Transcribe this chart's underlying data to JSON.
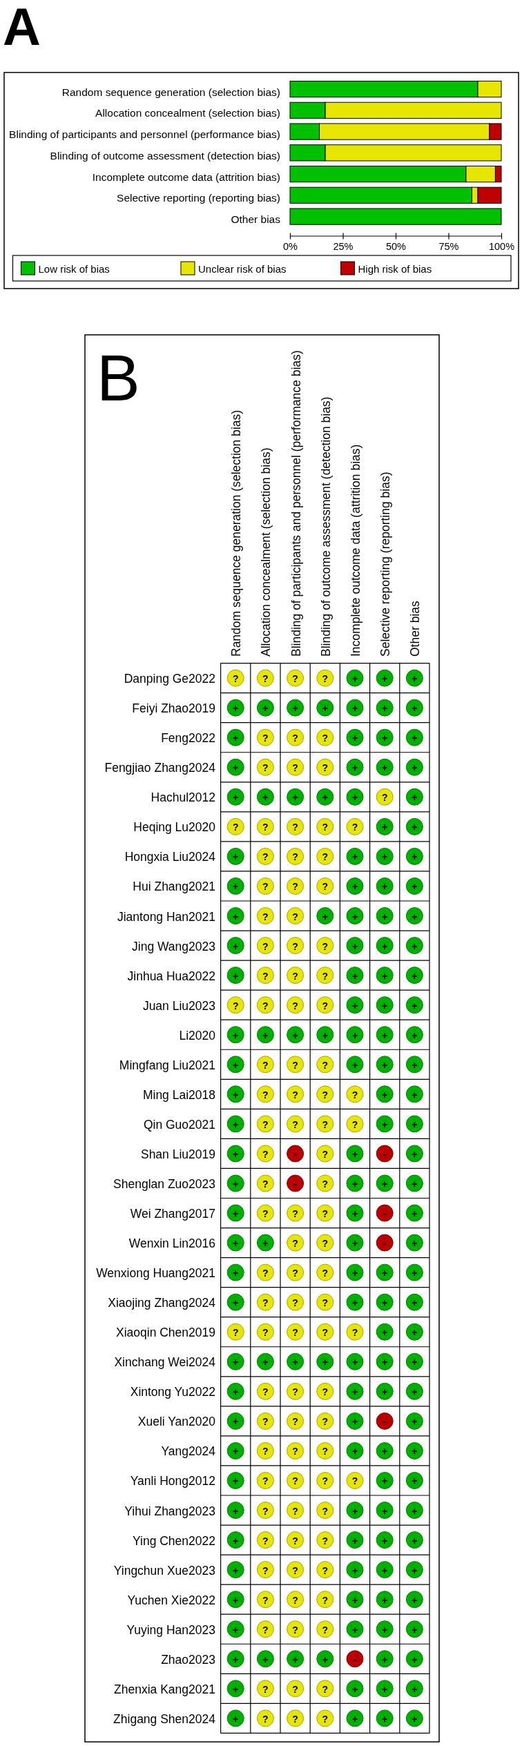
{
  "chart_data": [
    {
      "type": "bar",
      "orientation": "horizontal",
      "stacked": true,
      "title": "A",
      "categories": [
        "Random sequence generation (selection bias)",
        "Allocation concealment (selection bias)",
        "Blinding of participants and personnel (performance bias)",
        "Blinding of outcome assessment (detection bias)",
        "Incomplete outcome data (attrition bias)",
        "Selective reporting (reporting bias)",
        "Other bias"
      ],
      "series": [
        {
          "name": "Low risk of bias",
          "color": "#00c000",
          "values": [
            88.9,
            16.7,
            13.9,
            16.7,
            83.3,
            86.1,
            100
          ]
        },
        {
          "name": "Unclear risk of bias",
          "color": "#e6e600",
          "values": [
            11.1,
            83.3,
            80.5,
            83.3,
            13.9,
            2.8,
            0
          ]
        },
        {
          "name": "High risk of bias",
          "color": "#c00000",
          "values": [
            0,
            0,
            5.6,
            0,
            2.8,
            11.1,
            0
          ]
        }
      ],
      "xlim": [
        0,
        100
      ],
      "xticks": [
        {
          "value": 0,
          "label": "0%"
        },
        {
          "value": 25,
          "label": "25%"
        },
        {
          "value": 50,
          "label": "50%"
        },
        {
          "value": 75,
          "label": "75%"
        },
        {
          "value": 100,
          "label": "100%"
        }
      ],
      "legend": "bottom"
    },
    {
      "type": "heatmap",
      "title": "B",
      "categories": [
        "Random sequence generation (selection bias)",
        "Allocation concealment (selection bias)",
        "Blinding of participants and personnel (performance bias)",
        "Blinding of outcome assessment (detection bias)",
        "Incomplete outcome data (attrition bias)",
        "Selective reporting (reporting bias)",
        "Other bias"
      ],
      "y_categories": [
        "Danping Ge2022",
        "Feiyi Zhao2019",
        "Feng2022",
        "Fengjiao Zhang2024",
        "Hachul2012",
        "Heqing Lu2020",
        "Hongxia Liu2024",
        "Hui Zhang2021",
        "Jiantong Han2021",
        "Jing Wang2023",
        "Jinhua Hua2022",
        "Juan Liu2023",
        "Li2020",
        "Mingfang Liu2021",
        "Ming Lai2018",
        "Qin Guo2021",
        "Shan Liu2019",
        "Shenglan Zuo2023",
        "Wei Zhang2017",
        "Wenxin Lin2016",
        "Wenxiong Huang2021",
        "Xiaojing Zhang2024",
        "Xiaoqin Chen2019",
        "Xinchang Wei2024",
        "Xintong Yu2022",
        "Xueli Yan2020",
        "Yang2024",
        "Yanli Hong2012",
        "Yihui Zhang2023",
        "Ying Chen2022",
        "Yingchun Xue2023",
        "Yuchen Xie2022",
        "Yuying Han2023",
        "Zhao2023",
        "Zhenxia Kang2021",
        "Zhigang Shen2024"
      ],
      "cells": [
        [
          "?",
          "?",
          "?",
          "?",
          "+",
          "+",
          "+"
        ],
        [
          "+",
          "+",
          "+",
          "+",
          "+",
          "+",
          "+"
        ],
        [
          "+",
          "?",
          "?",
          "?",
          "+",
          "+",
          "+"
        ],
        [
          "+",
          "?",
          "?",
          "?",
          "+",
          "+",
          "+"
        ],
        [
          "+",
          "+",
          "+",
          "+",
          "+",
          "?",
          "+"
        ],
        [
          "?",
          "?",
          "?",
          "?",
          "?",
          "+",
          "+"
        ],
        [
          "+",
          "?",
          "?",
          "?",
          "+",
          "+",
          "+"
        ],
        [
          "+",
          "?",
          "?",
          "?",
          "+",
          "+",
          "+"
        ],
        [
          "+",
          "?",
          "?",
          "+",
          "+",
          "+",
          "+"
        ],
        [
          "+",
          "?",
          "?",
          "?",
          "+",
          "+",
          "+"
        ],
        [
          "+",
          "?",
          "?",
          "?",
          "+",
          "+",
          "+"
        ],
        [
          "?",
          "?",
          "?",
          "?",
          "+",
          "+",
          "+"
        ],
        [
          "+",
          "+",
          "+",
          "+",
          "+",
          "+",
          "+"
        ],
        [
          "+",
          "?",
          "?",
          "?",
          "+",
          "+",
          "+"
        ],
        [
          "+",
          "?",
          "?",
          "?",
          "?",
          "+",
          "+"
        ],
        [
          "+",
          "?",
          "?",
          "?",
          "?",
          "+",
          "+"
        ],
        [
          "+",
          "?",
          "-",
          "?",
          "+",
          "-",
          "+"
        ],
        [
          "+",
          "?",
          "-",
          "?",
          "+",
          "+",
          "+"
        ],
        [
          "+",
          "?",
          "?",
          "?",
          "+",
          "-",
          "+"
        ],
        [
          "+",
          "+",
          "?",
          "?",
          "+",
          "-",
          "+"
        ],
        [
          "+",
          "?",
          "?",
          "?",
          "+",
          "+",
          "+"
        ],
        [
          "+",
          "?",
          "?",
          "?",
          "+",
          "+",
          "+"
        ],
        [
          "?",
          "?",
          "?",
          "?",
          "?",
          "+",
          "+"
        ],
        [
          "+",
          "+",
          "+",
          "+",
          "+",
          "+",
          "+"
        ],
        [
          "+",
          "?",
          "?",
          "?",
          "+",
          "+",
          "+"
        ],
        [
          "+",
          "?",
          "?",
          "?",
          "+",
          "-",
          "+"
        ],
        [
          "+",
          "?",
          "?",
          "?",
          "+",
          "+",
          "+"
        ],
        [
          "+",
          "?",
          "?",
          "?",
          "?",
          "+",
          "+"
        ],
        [
          "+",
          "?",
          "?",
          "?",
          "+",
          "+",
          "+"
        ],
        [
          "+",
          "?",
          "?",
          "?",
          "+",
          "+",
          "+"
        ],
        [
          "+",
          "?",
          "?",
          "?",
          "+",
          "+",
          "+"
        ],
        [
          "+",
          "?",
          "?",
          "?",
          "+",
          "+",
          "+"
        ],
        [
          "+",
          "?",
          "?",
          "?",
          "+",
          "+",
          "+"
        ],
        [
          "+",
          "+",
          "+",
          "+",
          "-",
          "+",
          "+"
        ],
        [
          "+",
          "?",
          "?",
          "?",
          "+",
          "+",
          "+"
        ],
        [
          "+",
          "?",
          "?",
          "?",
          "+",
          "+",
          "+"
        ]
      ],
      "colors": [
        [
          "#e6e600",
          "#e6e600",
          "#e6e600",
          "#e6e600",
          "#00b000",
          "#00b000",
          "#00b000"
        ],
        [
          "#00b000",
          "#00b000",
          "#00b000",
          "#00b000",
          "#00b000",
          "#00b000",
          "#00b000"
        ],
        [
          "#00b000",
          "#e6e600",
          "#e6e600",
          "#e6e600",
          "#00b000",
          "#00b000",
          "#00b000"
        ],
        [
          "#00b000",
          "#e6e600",
          "#e6e600",
          "#e6e600",
          "#00b000",
          "#00b000",
          "#00b000"
        ],
        [
          "#00b000",
          "#00b000",
          "#00b000",
          "#00b000",
          "#00b000",
          "#e6e600",
          "#00b000"
        ],
        [
          "#e6e600",
          "#e6e600",
          "#e6e600",
          "#e6e600",
          "#e6e600",
          "#00b000",
          "#00b000"
        ],
        [
          "#00b000",
          "#e6e600",
          "#e6e600",
          "#e6e600",
          "#00b000",
          "#00b000",
          "#00b000"
        ],
        [
          "#00b000",
          "#e6e600",
          "#e6e600",
          "#e6e600",
          "#00b000",
          "#00b000",
          "#00b000"
        ],
        [
          "#00b000",
          "#e6e600",
          "#e6e600",
          "#00b000",
          "#00b000",
          "#00b000",
          "#00b000"
        ],
        [
          "#00b000",
          "#e6e600",
          "#e6e600",
          "#e6e600",
          "#00b000",
          "#00b000",
          "#00b000"
        ],
        [
          "#00b000",
          "#e6e600",
          "#e6e600",
          "#e6e600",
          "#00b000",
          "#00b000",
          "#00b000"
        ],
        [
          "#e6e600",
          "#e6e600",
          "#e6e600",
          "#e6e600",
          "#00b000",
          "#00b000",
          "#00b000"
        ],
        [
          "#00b000",
          "#00b000",
          "#00b000",
          "#00b000",
          "#00b000",
          "#00b000",
          "#00b000"
        ],
        [
          "#00b000",
          "#e6e600",
          "#e6e600",
          "#e6e600",
          "#00b000",
          "#00b000",
          "#00b000"
        ],
        [
          "#00b000",
          "#e6e600",
          "#e6e600",
          "#e6e600",
          "#e6e600",
          "#00b000",
          "#00b000"
        ],
        [
          "#00b000",
          "#e6e600",
          "#e6e600",
          "#e6e600",
          "#e6e600",
          "#00b000",
          "#00b000"
        ],
        [
          "#00b000",
          "#e6e600",
          "#b80000",
          "#e6e600",
          "#00b000",
          "#b80000",
          "#00b000"
        ],
        [
          "#00b000",
          "#e6e600",
          "#b80000",
          "#e6e600",
          "#00b000",
          "#00b000",
          "#00b000"
        ],
        [
          "#00b000",
          "#e6e600",
          "#e6e600",
          "#e6e600",
          "#00b000",
          "#b80000",
          "#00b000"
        ],
        [
          "#00b000",
          "#00b000",
          "#e6e600",
          "#e6e600",
          "#00b000",
          "#b80000",
          "#00b000"
        ],
        [
          "#00b000",
          "#e6e600",
          "#e6e600",
          "#e6e600",
          "#00b000",
          "#00b000",
          "#00b000"
        ],
        [
          "#00b000",
          "#e6e600",
          "#e6e600",
          "#e6e600",
          "#00b000",
          "#00b000",
          "#00b000"
        ],
        [
          "#e6e600",
          "#e6e600",
          "#e6e600",
          "#e6e600",
          "#e6e600",
          "#00b000",
          "#00b000"
        ],
        [
          "#00b000",
          "#00b000",
          "#00b000",
          "#00b000",
          "#00b000",
          "#00b000",
          "#00b000"
        ],
        [
          "#00b000",
          "#e6e600",
          "#e6e600",
          "#e6e600",
          "#00b000",
          "#00b000",
          "#00b000"
        ],
        [
          "#00b000",
          "#e6e600",
          "#e6e600",
          "#e6e600",
          "#00b000",
          "#b80000",
          "#00b000"
        ],
        [
          "#00b000",
          "#e6e600",
          "#e6e600",
          "#e6e600",
          "#00b000",
          "#00b000",
          "#00b000"
        ],
        [
          "#00b000",
          "#e6e600",
          "#e6e600",
          "#e6e600",
          "#e6e600",
          "#00b000",
          "#00b000"
        ],
        [
          "#00b000",
          "#e6e600",
          "#e6e600",
          "#e6e600",
          "#00b000",
          "#00b000",
          "#00b000"
        ],
        [
          "#00b000",
          "#e6e600",
          "#e6e600",
          "#e6e600",
          "#00b000",
          "#00b000",
          "#00b000"
        ],
        [
          "#00b000",
          "#e6e600",
          "#e6e600",
          "#e6e600",
          "#00b000",
          "#00b000",
          "#00b000"
        ],
        [
          "#00b000",
          "#e6e600",
          "#e6e600",
          "#e6e600",
          "#00b000",
          "#00b000",
          "#00b000"
        ],
        [
          "#00b000",
          "#e6e600",
          "#e6e600",
          "#e6e600",
          "#00b000",
          "#00b000",
          "#00b000"
        ],
        [
          "#00b000",
          "#00b000",
          "#00b000",
          "#00b000",
          "#b80000",
          "#00b000",
          "#00b000"
        ],
        [
          "#00b000",
          "#e6e600",
          "#e6e600",
          "#e6e600",
          "#00b000",
          "#00b000",
          "#00b000"
        ],
        [
          "#00b000",
          "#e6e600",
          "#e6e600",
          "#e6e600",
          "#00b000",
          "#00b000",
          "#00b000"
        ]
      ]
    }
  ]
}
